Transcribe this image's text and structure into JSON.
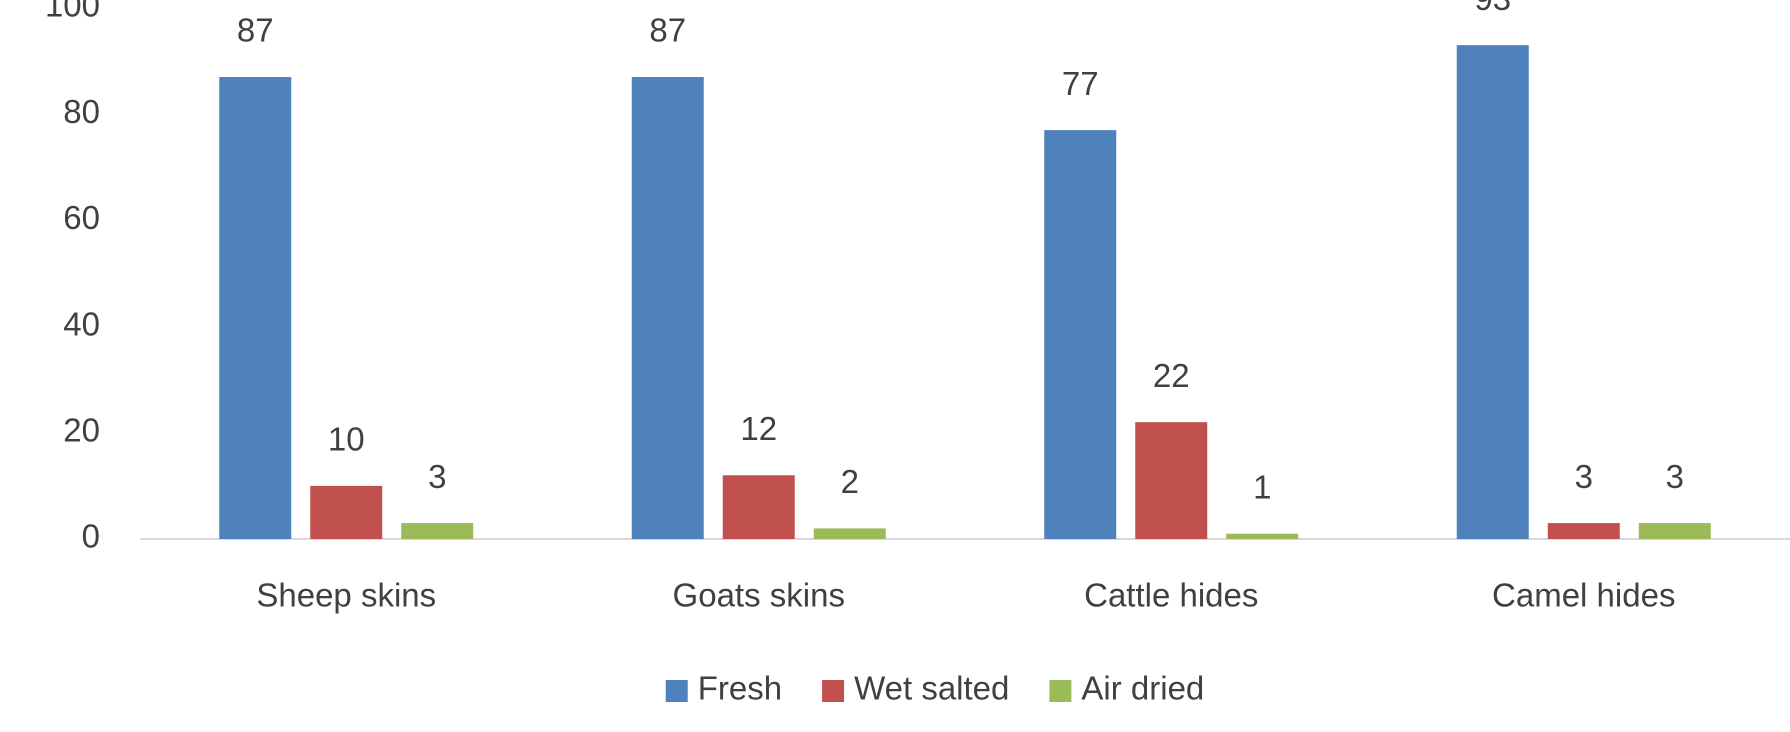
{
  "chart_data": {
    "type": "bar",
    "categories": [
      "Sheep skins",
      "Goats skins",
      "Cattle hides",
      "Camel hides"
    ],
    "series": [
      {
        "name": "Fresh",
        "color": "#4f81bd",
        "values": [
          87,
          87,
          77,
          93
        ]
      },
      {
        "name": "Wet salted",
        "color": "#c0504d",
        "values": [
          10,
          12,
          22,
          3
        ]
      },
      {
        "name": "Air dried",
        "color": "#9bbb59",
        "values": [
          3,
          2,
          1,
          3
        ]
      }
    ],
    "ylim": [
      0,
      100
    ],
    "yticks": [
      0,
      20,
      40,
      60,
      80,
      100
    ],
    "grid": false,
    "legend": "bottom"
  }
}
